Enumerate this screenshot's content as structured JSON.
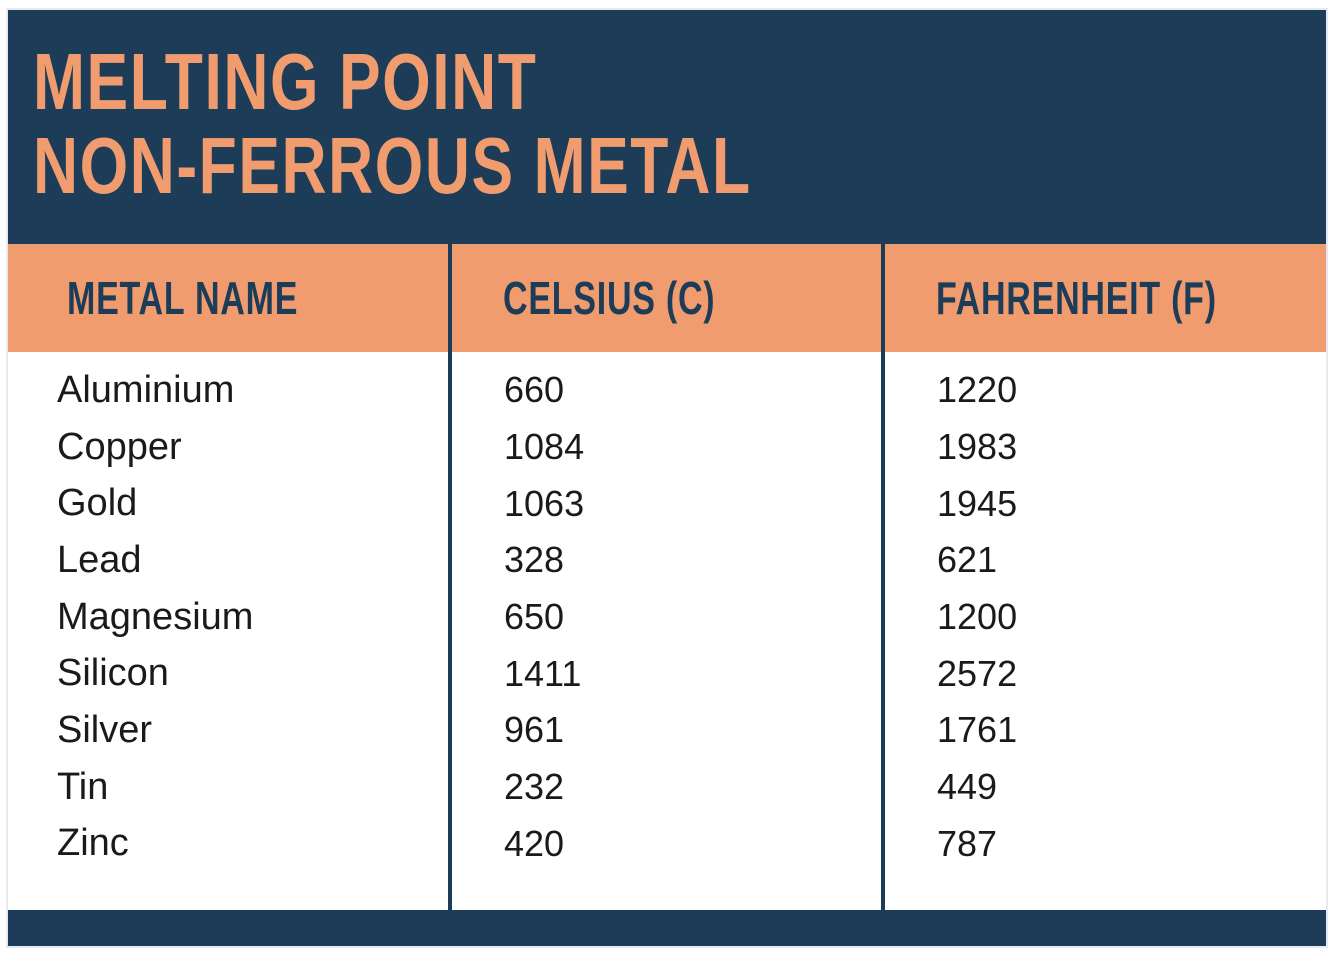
{
  "title": {
    "line1": "MELTING POINT",
    "line2": "NON-FERROUS METAL"
  },
  "table": {
    "headers": {
      "metal": "METAL NAME",
      "celsius": "CELSIUS (C)",
      "fahrenheit": "FAHRENHEIT (F)"
    },
    "rows": [
      {
        "metal": "Aluminium",
        "celsius": "660",
        "fahrenheit": "1220"
      },
      {
        "metal": "Copper",
        "celsius": "1084",
        "fahrenheit": "1983"
      },
      {
        "metal": "Gold",
        "celsius": "1063",
        "fahrenheit": "1945"
      },
      {
        "metal": "Lead",
        "celsius": "328",
        "fahrenheit": "621"
      },
      {
        "metal": "Magnesium",
        "celsius": "650",
        "fahrenheit": "1200"
      },
      {
        "metal": "Silicon",
        "celsius": "1411",
        "fahrenheit": "2572"
      },
      {
        "metal": "Silver",
        "celsius": "961",
        "fahrenheit": "1761"
      },
      {
        "metal": "Tin",
        "celsius": "232",
        "fahrenheit": "449"
      },
      {
        "metal": "Zinc",
        "celsius": "420",
        "fahrenheit": "787"
      }
    ]
  },
  "colors": {
    "navy": "#1D3C58",
    "orange": "#F09C6F",
    "body_text": "#1A1A1A",
    "page_bg": "#FFFFFF"
  },
  "chart_data": {
    "type": "table",
    "title": "MELTING POINT NON-FERROUS METAL",
    "columns": [
      "METAL NAME",
      "CELSIUS (C)",
      "FAHRENHEIT (F)"
    ],
    "rows": [
      [
        "Aluminium",
        660,
        1220
      ],
      [
        "Copper",
        1084,
        1983
      ],
      [
        "Gold",
        1063,
        1945
      ],
      [
        "Lead",
        328,
        621
      ],
      [
        "Magnesium",
        650,
        1200
      ],
      [
        "Silicon",
        1411,
        2572
      ],
      [
        "Silver",
        961,
        1761
      ],
      [
        "Tin",
        232,
        449
      ],
      [
        "Zinc",
        420,
        787
      ]
    ]
  }
}
